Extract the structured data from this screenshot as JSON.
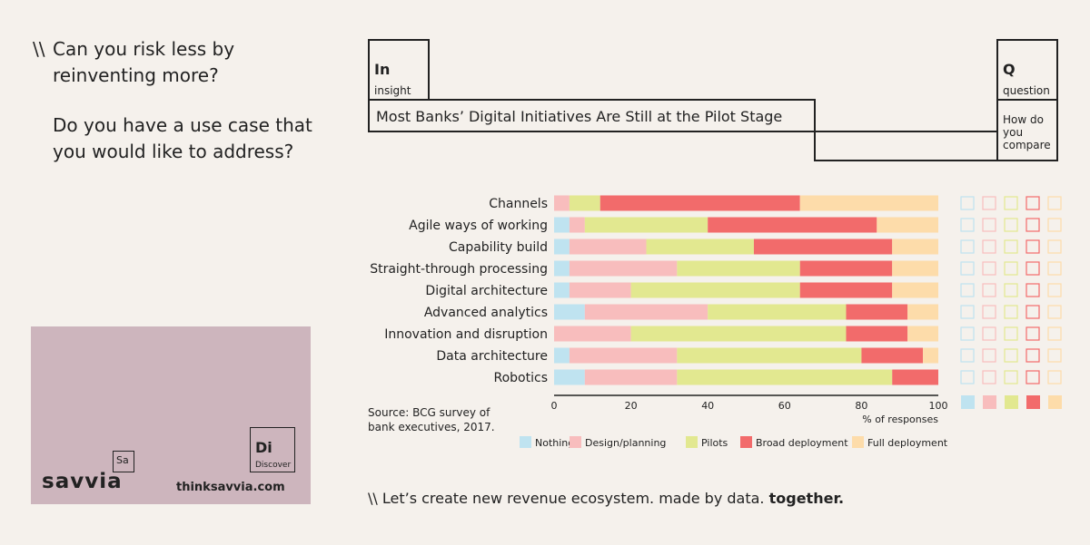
{
  "header": {
    "prefix": "\\\\",
    "question1": "Can you risk less by reinventing more?",
    "question2": "Do you have a use case that you would like to address?"
  },
  "insight": {
    "symbol": "In",
    "label": "insight",
    "title": "Most Banks’ Digital Initiatives Are Still at the Pilot Stage"
  },
  "question": {
    "symbol": "Q",
    "label": "question",
    "text": "How do you compare"
  },
  "card": {
    "badge": "Sa",
    "brand": "savvia",
    "symbol": "Di",
    "label": "Discover",
    "url": "thinksavvia.com"
  },
  "source": "Source: BCG survey of bank executives, 2017.",
  "footer": {
    "prefix": "\\\\",
    "text": "Let’s create new revenue ecosystem. made by data.",
    "bold": "together."
  },
  "colors": {
    "Nothing": "#bfe3f0",
    "Design/planning": "#f8bdbd",
    "Pilots": "#e2e890",
    "Broad deployment": "#f26b6b",
    "Full deployment": "#fddcaa"
  },
  "chart_data": {
    "type": "bar",
    "orientation": "horizontal",
    "stacked": true,
    "categories": [
      "Channels",
      "Agile ways of working",
      "Capability build",
      "Straight-through processing",
      "Digital architecture",
      "Advanced analytics",
      "Innovation and disruption",
      "Data architecture",
      "Robotics"
    ],
    "series": [
      {
        "name": "Nothing",
        "values": [
          0,
          4,
          4,
          4,
          4,
          8,
          0,
          4,
          8
        ]
      },
      {
        "name": "Design/planning",
        "values": [
          4,
          4,
          20,
          28,
          16,
          32,
          20,
          28,
          24
        ]
      },
      {
        "name": "Pilots",
        "values": [
          8,
          32,
          28,
          32,
          44,
          36,
          56,
          48,
          56
        ]
      },
      {
        "name": "Broad deployment",
        "values": [
          52,
          44,
          36,
          24,
          24,
          16,
          16,
          16,
          12
        ]
      },
      {
        "name": "Full deployment",
        "values": [
          36,
          16,
          12,
          12,
          12,
          8,
          8,
          4,
          0
        ]
      }
    ],
    "xticks": [
      0,
      20,
      40,
      60,
      80,
      100
    ],
    "xlabel": "% of responses",
    "xlim": [
      0,
      100
    ],
    "legend": "bottom"
  }
}
